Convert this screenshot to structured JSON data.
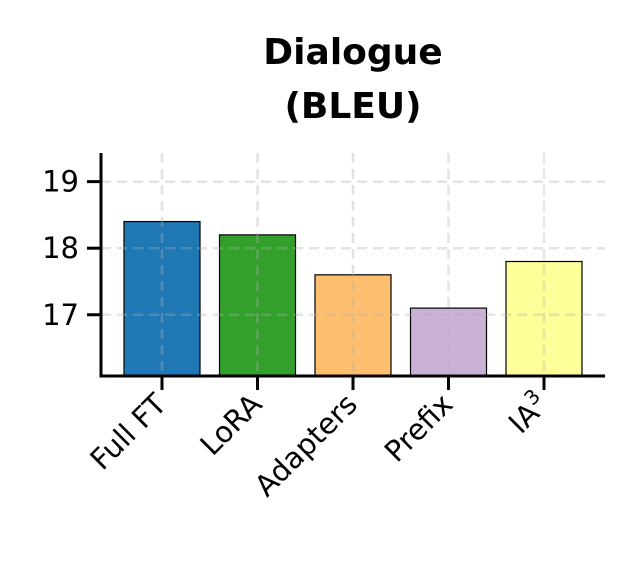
{
  "chart_data": {
    "type": "bar",
    "title": [
      "Dialogue",
      "(BLEU)"
    ],
    "xlabel": "",
    "ylabel": "",
    "categories": [
      "Full FT",
      "LoRA",
      "Adapters",
      "Prefix",
      "IA3"
    ],
    "category_labels": [
      {
        "base": "Full FT",
        "sup": ""
      },
      {
        "base": "LoRA",
        "sup": ""
      },
      {
        "base": "Adapters",
        "sup": ""
      },
      {
        "base": "Prefix",
        "sup": ""
      },
      {
        "base": "IA",
        "sup": "3"
      }
    ],
    "values": [
      18.4,
      18.2,
      17.6,
      17.1,
      17.8
    ],
    "colors": [
      "#1f77b4",
      "#33a02c",
      "#fdbf6f",
      "#cab2d6",
      "#ffff99"
    ],
    "ylim": [
      16.08,
      19.43
    ],
    "yticks": [
      17,
      18,
      19
    ],
    "grid": true
  }
}
